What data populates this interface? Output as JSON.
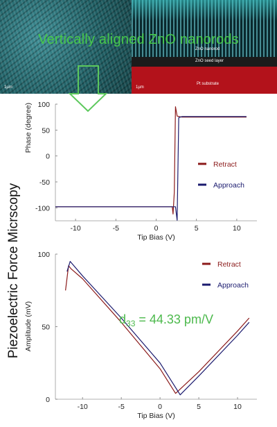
{
  "header": {
    "title": "Vertically aligned ZnO nanorods",
    "left_scale_label": "1µm",
    "right_labels": [
      "ZnO nanorod",
      "ZnO seed layer",
      "Pt substrate"
    ],
    "right_scale_label": "1µm"
  },
  "side_title": "Piezoelectric Force Micrscopy",
  "colors": {
    "title_green": "#46c94a",
    "arrow_green": "#5cc85c",
    "retract": "#8b1a1a",
    "approach": "#1a1a6e",
    "annotation_green": "#4cb94c"
  },
  "chart_data": [
    {
      "type": "line",
      "xlabel": "Tip Bias (V)",
      "ylabel": "Phase (degree)",
      "xlim": [
        -12.5,
        12.5
      ],
      "ylim": [
        -125,
        100
      ],
      "xticks": [
        -10,
        -5,
        0,
        5,
        10
      ],
      "yticks": [
        -100,
        -50,
        0,
        50,
        100
      ],
      "legend": [
        "Retract",
        "Approach"
      ],
      "series": [
        {
          "name": "Retract",
          "x": [
            -12.5,
            2.0,
            2.1,
            2.25,
            2.4,
            2.6,
            3.2,
            11.2
          ],
          "y": [
            -98,
            -98,
            -112,
            -70,
            95,
            77,
            75,
            75
          ]
        },
        {
          "name": "Approach",
          "x": [
            -12.5,
            1.7,
            2.4,
            2.6,
            2.8,
            3.2,
            11.2
          ],
          "y": [
            -98,
            -98,
            -98,
            -124,
            74,
            76,
            76
          ]
        }
      ]
    },
    {
      "type": "line",
      "xlabel": "Tip Bias (V)",
      "ylabel": "Amplitude (mV)",
      "xlim": [
        -13.5,
        12.5
      ],
      "ylim": [
        0,
        100
      ],
      "xticks": [
        -10,
        -5,
        0,
        5,
        10
      ],
      "yticks": [
        0,
        50,
        100
      ],
      "legend": [
        "Retract",
        "Approach"
      ],
      "annotation": "d33 = 44.33 pm/V",
      "series": [
        {
          "name": "Retract",
          "x": [
            -12.2,
            -11.8,
            -11.5,
            -10,
            -5,
            0,
            2.0,
            5,
            10,
            11.5
          ],
          "y": [
            75,
            92,
            90,
            83,
            53,
            21,
            4,
            19,
            47,
            56
          ]
        },
        {
          "name": "Approach",
          "x": [
            -12.0,
            -11.6,
            -10,
            -5,
            0,
            2.6,
            5,
            10,
            11.5
          ],
          "y": [
            88,
            95,
            85,
            56,
            25,
            3,
            16,
            44,
            53
          ]
        }
      ]
    }
  ]
}
